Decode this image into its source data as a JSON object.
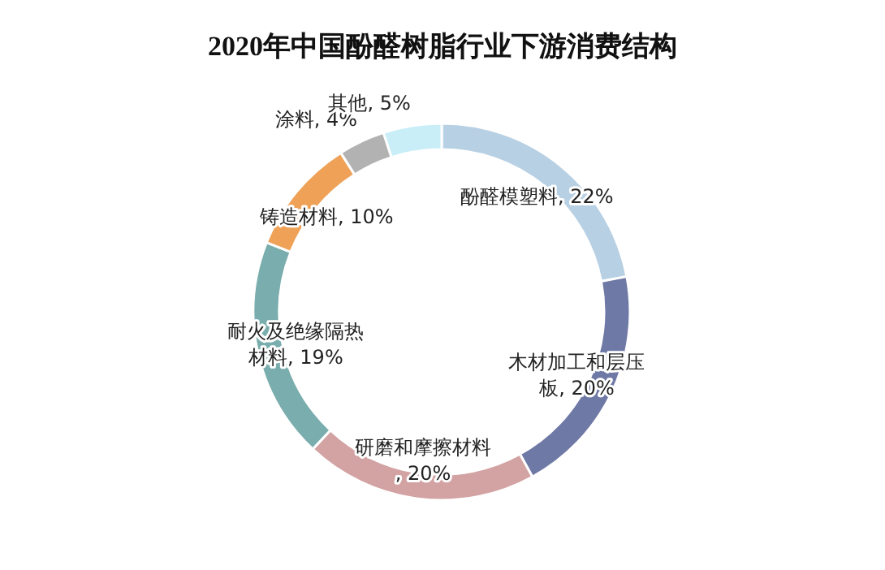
{
  "chart_data": {
    "type": "donut",
    "title": "2020年中国酚醛树脂行业下游消费结构",
    "categories": [
      "酚醛模塑料",
      "木材加工和层压板",
      "研磨和摩擦材料",
      "耐火及绝缘隔热材料",
      "铸造材料",
      "涂料",
      "其他"
    ],
    "values": [
      22,
      20,
      20,
      19,
      10,
      4,
      5
    ],
    "colors": [
      "#b7d0e4",
      "#6f79a5",
      "#d3a2a3",
      "#7aadad",
      "#efa257",
      "#b2b2b2",
      "#c9eef8"
    ],
    "value_labels": [
      ", 22%",
      ", 20%",
      ", 20%",
      ", 19%",
      ", 10%",
      ", 4%",
      ", 5%"
    ]
  }
}
